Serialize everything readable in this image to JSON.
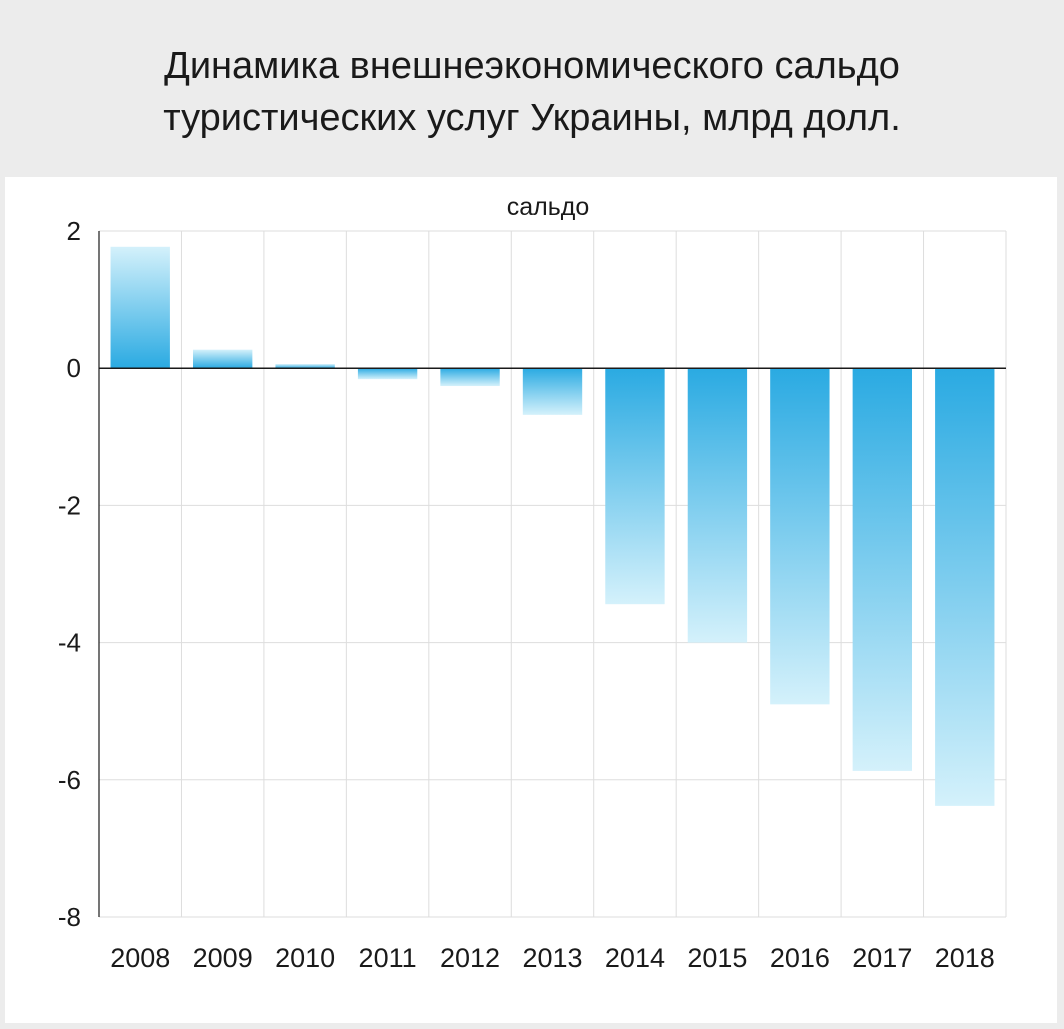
{
  "title": {
    "line1": "Динамика внешнеэкономического сальдо",
    "line2": "туристических услуг Украины, млрд долл."
  },
  "colors": {
    "background": "#ececec",
    "panel": "#ffffff",
    "bar_dark": "#2aaae2",
    "bar_light": "#d4f1fb",
    "grid": "#dddddd",
    "axis": "#1a1a1a"
  },
  "chart_data": {
    "type": "bar",
    "title": "Динамика внешнеэкономического сальдо туристических услуг Украины, млрд долл.",
    "series_label": "сальдо",
    "categories": [
      "2008",
      "2009",
      "2010",
      "2011",
      "2012",
      "2013",
      "2014",
      "2015",
      "2016",
      "2017",
      "2018"
    ],
    "series": [
      {
        "name": "сальдо",
        "values": [
          1.77,
          0.27,
          0.06,
          -0.16,
          -0.26,
          -0.68,
          -3.44,
          -4.0,
          -4.9,
          -5.87,
          -6.38
        ]
      }
    ],
    "ylim": [
      -8,
      2
    ],
    "yticks": [
      2,
      0,
      -2,
      -4,
      -6,
      -8
    ],
    "ytick_labels": [
      "2",
      "0",
      "-2",
      "-4",
      "-6",
      "-8"
    ],
    "grid": true,
    "xlabel": "",
    "ylabel": ""
  }
}
